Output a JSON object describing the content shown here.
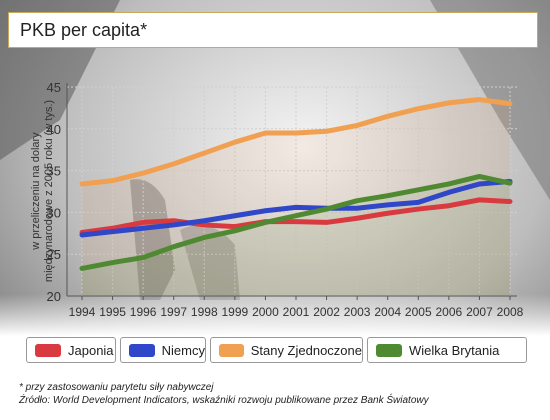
{
  "header": {
    "title": "PKB per capita*"
  },
  "colors": {
    "japonia": "#d93a3f",
    "niemcy": "#2f47c8",
    "usa": "#f0a050",
    "uk": "#4f8a32"
  },
  "chart_data": {
    "type": "line",
    "ylabel": "w przeliczeniu na dolary międzynarodowe z 2005 roku (w tys.)",
    "ylim": [
      20,
      45
    ],
    "yticks": [
      "20",
      "25",
      "30",
      "35",
      "40",
      "45"
    ],
    "x": [
      "1994",
      "1995",
      "1996",
      "1997",
      "1998",
      "1999",
      "2000",
      "2001",
      "2002",
      "2003",
      "2004",
      "2005",
      "2006",
      "2007",
      "2008"
    ],
    "grid": true,
    "legend_position": "bottom",
    "series": [
      {
        "name": "Japonia",
        "color": "#d93a3f",
        "values": [
          27.6,
          28.1,
          28.8,
          29.0,
          28.5,
          28.3,
          28.9,
          28.9,
          28.8,
          29.3,
          29.9,
          30.4,
          30.8,
          31.5,
          31.3
        ]
      },
      {
        "name": "Niemcy",
        "color": "#2f47c8",
        "values": [
          27.3,
          27.7,
          28.1,
          28.5,
          29.0,
          29.6,
          30.2,
          30.6,
          30.5,
          30.5,
          30.9,
          31.2,
          32.4,
          33.4,
          33.7
        ]
      },
      {
        "name": "Stany Zjednoczone",
        "color": "#f0a050",
        "values": [
          33.4,
          33.8,
          34.7,
          35.8,
          37.1,
          38.4,
          39.5,
          39.5,
          39.7,
          40.4,
          41.5,
          42.4,
          43.1,
          43.5,
          43.0
        ]
      },
      {
        "name": "Wielka Brytania",
        "color": "#4f8a32",
        "values": [
          23.3,
          24.0,
          24.6,
          25.9,
          27.0,
          27.8,
          28.8,
          29.6,
          30.4,
          31.4,
          32.0,
          32.7,
          33.4,
          34.3,
          33.5
        ]
      }
    ]
  },
  "footnotes": {
    "line1": "* przy zastosowaniu parytetu siły nabywczej",
    "line2": "Źródło: World Development Indicators, wskaźniki rozwoju publikowane przez Bank Światowy"
  }
}
